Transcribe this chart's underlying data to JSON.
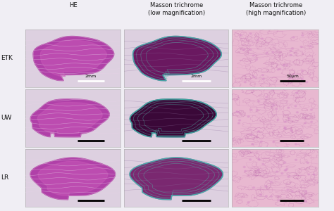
{
  "col_headers": [
    "HE",
    "Masson trichrome\n(low magnification)",
    "Masson trichrome\n(high magnification)"
  ],
  "row_labels": [
    "ETK",
    "UW",
    "LR"
  ],
  "scale_bar_texts": [
    [
      "2mm",
      "2mm",
      "50μm"
    ],
    [
      "",
      "",
      ""
    ],
    [
      "",
      "",
      ""
    ]
  ],
  "scale_bar_colors": [
    [
      "black",
      "black",
      "black"
    ],
    [
      "black",
      "black",
      "black"
    ],
    [
      "black",
      "black",
      "black"
    ]
  ],
  "outer_bg": "#f0eef4",
  "cell_bg": [
    [
      "#ddd0e0",
      "#ddd0e0",
      "#e8c8dc"
    ],
    [
      "#ddd0e0",
      "#ddd0e0",
      "#e8c8dc"
    ],
    [
      "#ddd0e0",
      "#ddd0e0",
      "#e8c8dc"
    ]
  ],
  "tissue_bg_he": "#ddd0e0",
  "tissue_bg_mt_low": "#ddd0e0",
  "tissue_bg_mt_high": "#e8c0d8",
  "he_tissue_color": "#b040a8",
  "he_tissue_inner": "#c060b8",
  "mt_low_tissue_dark": "#5a1858",
  "mt_low_tissue_medium": "#7a2870",
  "mt_low_outline": "#50c0b0",
  "mt_high_bg": "#e8b8d0",
  "mt_high_cell_color": "#d090c0"
}
